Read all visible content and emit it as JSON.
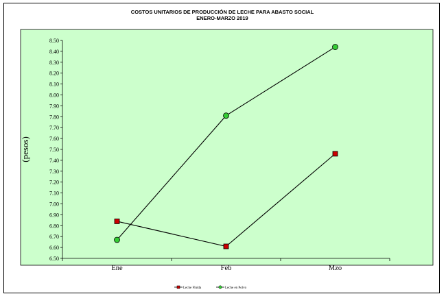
{
  "chart_data": {
    "type": "line",
    "title": "COSTOS UNITARIOS DE PRODUCCIÓN DE LECHE PARA ABASTO SOCIAL",
    "subtitle": "ENERO-MARZO 2019",
    "xlabel": "",
    "ylabel": "(pesos)",
    "categories": [
      "Ene",
      "Feb",
      "Mzo"
    ],
    "ylim": [
      6.5,
      8.5
    ],
    "ytick_step": 0.1,
    "ytick_labels": [
      "6.50",
      "6.60",
      "6.70",
      "6.80",
      "6.90",
      "7.00",
      "7.10",
      "7.20",
      "7.30",
      "7.40",
      "7.50",
      "7.60",
      "7.70",
      "7.80",
      "7.90",
      "8.00",
      "8.10",
      "8.20",
      "8.30",
      "8.40",
      "8.50"
    ],
    "grid": false,
    "plot_background": "#ccffcc",
    "legend_position": "bottom-center",
    "series": [
      {
        "name": "Leche Fluida",
        "values": [
          6.84,
          6.61,
          7.46
        ],
        "marker": "square",
        "color": "#cc0000"
      },
      {
        "name": "Leche en Polvo",
        "values": [
          6.67,
          7.81,
          8.44
        ],
        "marker": "circle",
        "color": "#33cc33"
      }
    ]
  }
}
